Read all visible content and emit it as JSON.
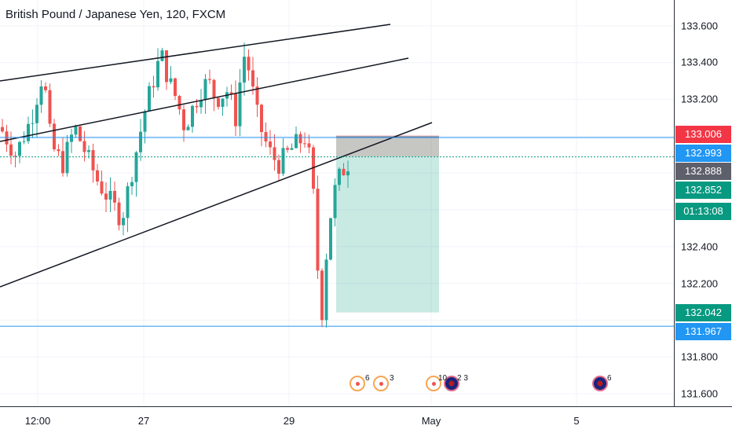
{
  "chart": {
    "title": "British Pound / Japanese Yen, 120, FXCM"
  },
  "price_axis": {
    "ticks": [
      "133.600",
      "133.400",
      "133.200",
      "132.400",
      "132.200",
      "131.800",
      "131.600"
    ],
    "badges": {
      "stop_loss": "133.006",
      "entry": "132.993",
      "last": "132.888",
      "bid": "132.852",
      "countdown": "01:13:08",
      "take_profit": "132.042",
      "support": "131.967"
    }
  },
  "time_axis": {
    "labels": [
      "12:00",
      "27",
      "29",
      "May",
      "5"
    ]
  },
  "events": [
    {
      "counts": [
        "6",
        "3"
      ]
    },
    {
      "counts": [
        "10",
        "2 3"
      ]
    },
    {
      "counts": [
        "6"
      ]
    }
  ],
  "colors": {
    "up": "#26a69a",
    "down": "#ef5350",
    "level_line": "#2196f3",
    "badge_red": "#f23645",
    "badge_blue": "#2196f3",
    "badge_grey": "#5d606b",
    "badge_teal": "#089981"
  }
}
